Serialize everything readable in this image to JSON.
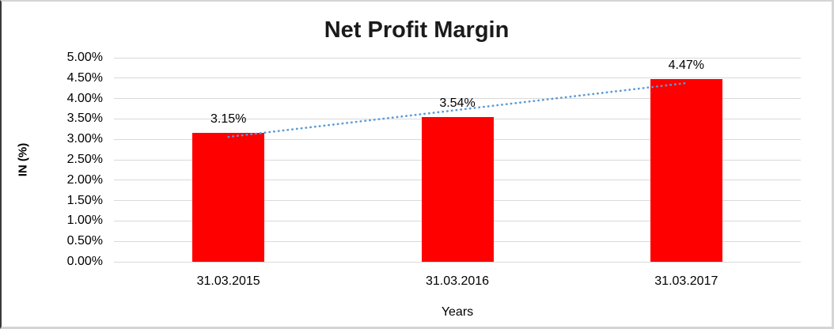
{
  "chart_data": {
    "type": "bar",
    "title": "Net Profit Margin",
    "xlabel": "Years",
    "ylabel": "IN (%)",
    "categories": [
      "31.03.2015",
      "31.03.2016",
      "31.03.2017"
    ],
    "values": [
      3.15,
      3.54,
      4.47
    ],
    "data_labels": [
      "3.15%",
      "3.54%",
      "4.47%"
    ],
    "ylim": [
      0,
      5
    ],
    "ytick_step": 0.5,
    "ytick_labels": [
      "0.00%",
      "0.50%",
      "1.00%",
      "1.50%",
      "2.00%",
      "2.50%",
      "3.00%",
      "3.50%",
      "4.00%",
      "4.50%",
      "5.00%"
    ],
    "grid": true,
    "legend": "none",
    "bar_color": "#FF0000",
    "gridline_color": "#D9D9D9",
    "text_color": "#000000",
    "trendline": {
      "type": "linear",
      "style": "dotted",
      "color": "#5B9BD5"
    }
  }
}
